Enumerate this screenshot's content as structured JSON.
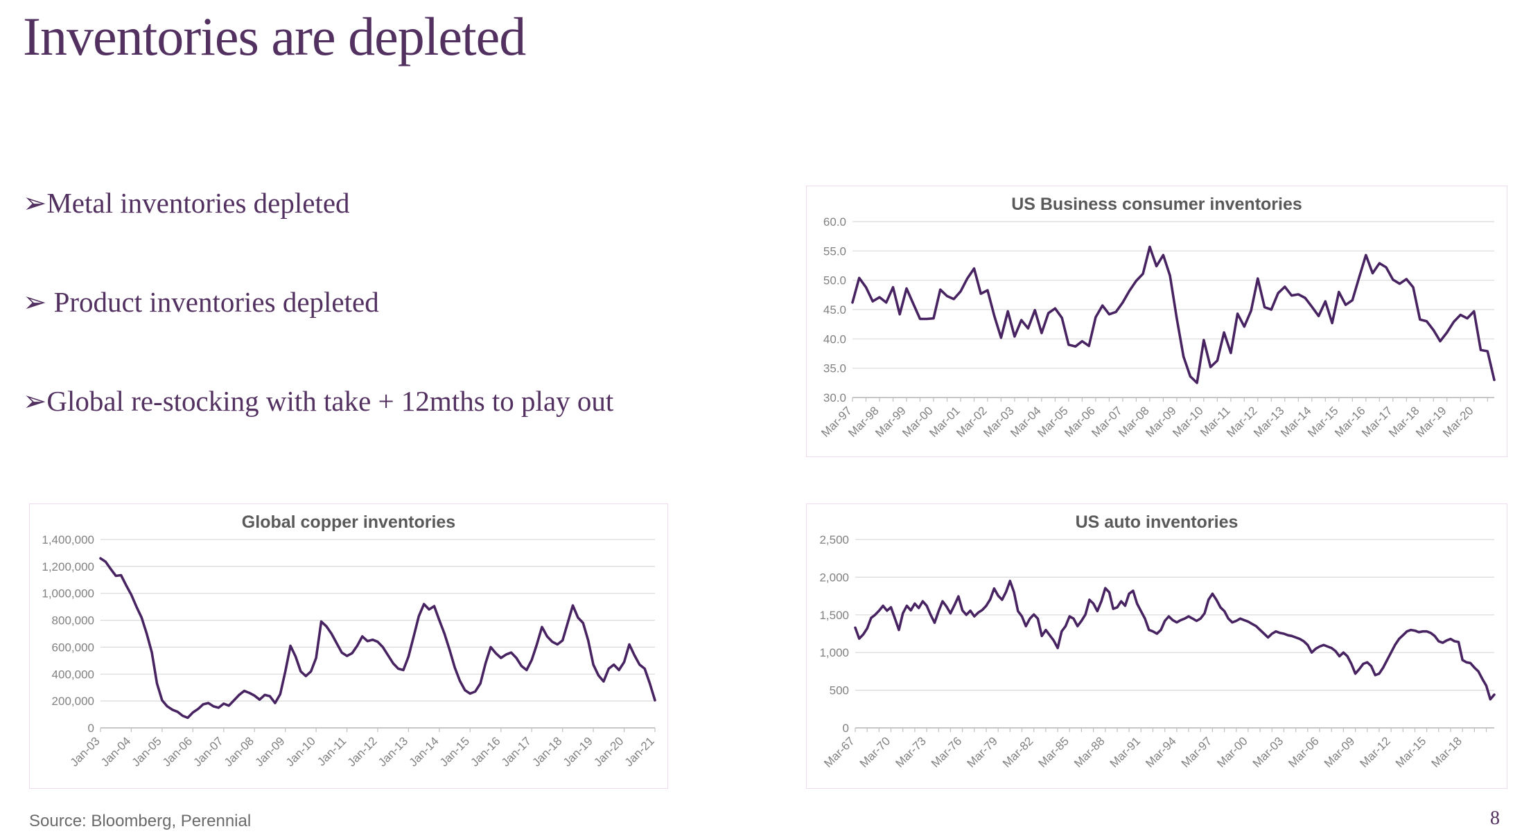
{
  "slide": {
    "title": "Inventories are depleted",
    "bullets": [
      "➢Metal inventories depleted",
      "➢ Product inventories depleted",
      "➢Global re-stocking with take + 12mths to play out"
    ],
    "source": "Source: Bloomberg, Perennial",
    "page_number": "8"
  },
  "colors": {
    "accent_purple": "#523060",
    "line": "#482361",
    "chart_title": "#595959",
    "axis_text": "#808080",
    "grid": "#d9d9d9",
    "axis_line": "#bfbfbf",
    "panel_border": "#eedcee"
  },
  "chart_data": [
    {
      "type": "line",
      "title": "US Business consumer inventories",
      "legend": "none",
      "grid": true,
      "y_min": 30,
      "y_max": 60,
      "y_ticks": [
        {
          "label": "60.0",
          "value": 60
        },
        {
          "label": "55.0",
          "value": 55
        },
        {
          "label": "50.0",
          "value": 50
        },
        {
          "label": "45.0",
          "value": 45
        },
        {
          "label": "40.0",
          "value": 40
        },
        {
          "label": "35.0",
          "value": 35
        },
        {
          "label": "30.0",
          "value": 30
        }
      ],
      "x_tick_labels": [
        "Mar-97",
        "Mar-98",
        "Mar-99",
        "Mar-00",
        "Mar-01",
        "Mar-02",
        "Mar-03",
        "Mar-04",
        "Mar-05",
        "Mar-06",
        "Mar-07",
        "Mar-08",
        "Mar-09",
        "Mar-10",
        "Mar-11",
        "Mar-12",
        "Mar-13",
        "Mar-14",
        "Mar-15",
        "Mar-16",
        "Mar-17",
        "Mar-18",
        "Mar-19",
        "Mar-20"
      ],
      "x_tick_every": 4,
      "minor_tick_every": 2,
      "x_period": "quarterly from Mar-1997 to Dec-2020",
      "values": [
        46.2,
        50.4,
        48.8,
        46.4,
        47.1,
        46.2,
        48.8,
        44.2,
        48.6,
        46.0,
        43.4,
        43.4,
        43.5,
        48.4,
        47.3,
        46.8,
        48.1,
        50.3,
        52.0,
        47.7,
        48.3,
        43.9,
        40.2,
        44.7,
        40.4,
        43.2,
        41.8,
        44.9,
        41.0,
        44.4,
        45.2,
        43.6,
        39.0,
        38.7,
        39.6,
        38.8,
        43.7,
        45.7,
        44.2,
        44.6,
        46.2,
        48.2,
        49.9,
        51.1,
        55.7,
        52.4,
        54.3,
        50.8,
        43.5,
        37.0,
        33.6,
        32.5,
        39.8,
        35.2,
        36.3,
        41.1,
        37.6,
        44.3,
        42.1,
        44.8,
        50.3,
        45.4,
        45.0,
        47.8,
        48.9,
        47.4,
        47.6,
        47.0,
        45.5,
        43.9,
        46.4,
        42.7,
        48.0,
        45.8,
        46.6,
        50.5,
        54.3,
        51.2,
        52.9,
        52.2,
        50.1,
        49.4,
        50.2,
        48.8,
        43.3,
        43.0,
        41.5,
        39.6,
        41.1,
        42.9,
        44.1,
        43.5,
        44.7,
        38.1,
        37.9,
        33.0
      ]
    },
    {
      "type": "line",
      "title": "Global copper inventories",
      "legend": "none",
      "grid": true,
      "y_min": 0,
      "y_max": 1400000,
      "y_ticks": [
        {
          "label": "1,400,000",
          "value": 1400000
        },
        {
          "label": "1,200,000",
          "value": 1200000
        },
        {
          "label": "1,000,000",
          "value": 1000000
        },
        {
          "label": "800,000",
          "value": 800000
        },
        {
          "label": "600,000",
          "value": 600000
        },
        {
          "label": "400,000",
          "value": 400000
        },
        {
          "label": "200,000",
          "value": 200000
        },
        {
          "label": "0",
          "value": 0
        }
      ],
      "x_tick_labels": [
        "Jan-03",
        "Jan-04",
        "Jan-05",
        "Jan-06",
        "Jan-07",
        "Jan-08",
        "Jan-09",
        "Jan-10",
        "Jan-11",
        "Jan-12",
        "Jan-13",
        "Jan-14",
        "Jan-15",
        "Jan-16",
        "Jan-17",
        "Jan-18",
        "Jan-19",
        "Jan-20",
        "Jan-21"
      ],
      "x_tick_every": 6,
      "minor_tick_every": 6,
      "x_period": "bi-monthly from Jan-2003 to Jan-2021, tonnes",
      "values": [
        1260000,
        1235000,
        1180000,
        1130000,
        1135000,
        1060000,
        990000,
        900000,
        820000,
        700000,
        560000,
        330000,
        205000,
        160000,
        135000,
        120000,
        90000,
        75000,
        115000,
        140000,
        175000,
        185000,
        160000,
        150000,
        180000,
        165000,
        205000,
        245000,
        275000,
        260000,
        240000,
        210000,
        245000,
        235000,
        185000,
        250000,
        420000,
        610000,
        530000,
        420000,
        385000,
        420000,
        520000,
        790000,
        755000,
        700000,
        630000,
        560000,
        535000,
        555000,
        610000,
        680000,
        645000,
        655000,
        640000,
        600000,
        540000,
        480000,
        440000,
        430000,
        530000,
        680000,
        830000,
        920000,
        880000,
        905000,
        800000,
        700000,
        580000,
        450000,
        350000,
        280000,
        255000,
        270000,
        330000,
        480000,
        600000,
        555000,
        520000,
        545000,
        560000,
        520000,
        460000,
        430000,
        505000,
        620000,
        750000,
        680000,
        640000,
        620000,
        650000,
        780000,
        910000,
        820000,
        780000,
        650000,
        470000,
        390000,
        345000,
        440000,
        470000,
        430000,
        490000,
        620000,
        540000,
        470000,
        440000,
        330000,
        205000
      ]
    },
    {
      "type": "line",
      "title": "US auto inventories",
      "legend": "none",
      "grid": true,
      "y_min": 0,
      "y_max": 2500,
      "y_ticks": [
        {
          "label": "2,500",
          "value": 2500
        },
        {
          "label": "2,000",
          "value": 2000
        },
        {
          "label": "1,500",
          "value": 1500
        },
        {
          "label": "1,000",
          "value": 1000
        },
        {
          "label": "500",
          "value": 500
        },
        {
          "label": "0",
          "value": 0
        }
      ],
      "x_tick_labels": [
        "Mar-67",
        "Mar-70",
        "Mar-73",
        "Mar-76",
        "Mar-79",
        "Mar-82",
        "Mar-85",
        "Mar-88",
        "Mar-91",
        "Mar-94",
        "Mar-97",
        "Mar-00",
        "Mar-03",
        "Mar-06",
        "Mar-09",
        "Mar-12",
        "Mar-15",
        "Mar-18"
      ],
      "x_tick_every": 9,
      "minor_tick_every": 3,
      "x_period": "three samples per year from Mar-1967 to late-2020",
      "values": [
        1330,
        1185,
        1240,
        1320,
        1460,
        1500,
        1555,
        1620,
        1555,
        1600,
        1450,
        1300,
        1520,
        1620,
        1560,
        1650,
        1590,
        1680,
        1620,
        1500,
        1395,
        1550,
        1680,
        1610,
        1520,
        1630,
        1745,
        1560,
        1500,
        1555,
        1480,
        1530,
        1565,
        1620,
        1705,
        1850,
        1755,
        1700,
        1805,
        1950,
        1800,
        1550,
        1480,
        1350,
        1450,
        1505,
        1450,
        1220,
        1300,
        1230,
        1160,
        1060,
        1280,
        1350,
        1480,
        1450,
        1350,
        1420,
        1505,
        1700,
        1650,
        1550,
        1680,
        1855,
        1800,
        1580,
        1600,
        1680,
        1620,
        1780,
        1820,
        1650,
        1550,
        1450,
        1300,
        1280,
        1250,
        1300,
        1420,
        1480,
        1430,
        1400,
        1430,
        1450,
        1480,
        1450,
        1420,
        1450,
        1520,
        1700,
        1780,
        1700,
        1600,
        1550,
        1450,
        1400,
        1420,
        1450,
        1430,
        1410,
        1380,
        1350,
        1300,
        1250,
        1200,
        1250,
        1280,
        1260,
        1250,
        1230,
        1220,
        1200,
        1180,
        1150,
        1100,
        1000,
        1050,
        1080,
        1100,
        1080,
        1060,
        1020,
        950,
        1000,
        950,
        850,
        720,
        780,
        850,
        870,
        820,
        700,
        720,
        800,
        900,
        1000,
        1100,
        1180,
        1230,
        1280,
        1300,
        1290,
        1270,
        1280,
        1280,
        1260,
        1220,
        1150,
        1130,
        1160,
        1180,
        1150,
        1140,
        900,
        870,
        860,
        800,
        750,
        650,
        560,
        380,
        440
      ]
    }
  ]
}
